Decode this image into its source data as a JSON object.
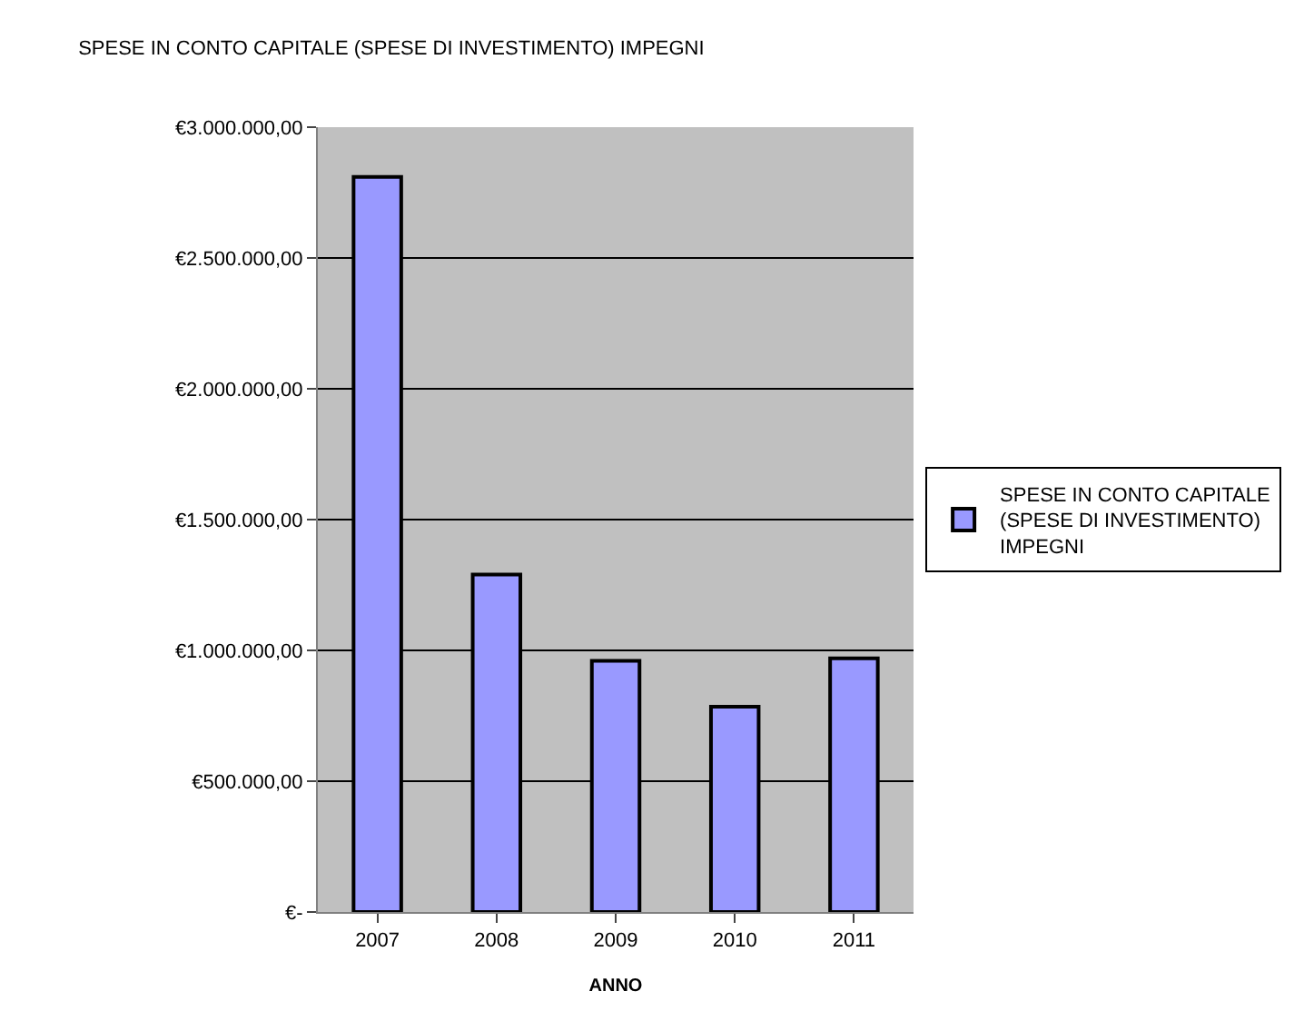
{
  "chart_data": {
    "type": "bar",
    "title": "SPESE IN CONTO CAPITALE (SPESE DI INVESTIMENTO) IMPEGNI",
    "xlabel": "ANNO",
    "categories": [
      "2007",
      "2008",
      "2009",
      "2010",
      "2011"
    ],
    "series": [
      {
        "name": "SPESE IN CONTO CAPITALE (SPESE DI INVESTIMENTO) IMPEGNI",
        "color": "#9999ff",
        "values": [
          2810000,
          1290000,
          960000,
          785000,
          970000
        ]
      }
    ],
    "ylim": [
      0,
      3000000
    ],
    "yticks": [
      {
        "value": 0,
        "label": "€-"
      },
      {
        "value": 500000,
        "label": "€500.000,00"
      },
      {
        "value": 1000000,
        "label": "€1.000.000,00"
      },
      {
        "value": 1500000,
        "label": "€1.500.000,00"
      },
      {
        "value": 2000000,
        "label": "€2.000.000,00"
      },
      {
        "value": 2500000,
        "label": "€2.500.000,00"
      },
      {
        "value": 3000000,
        "label": "€3.000.000,00"
      }
    ],
    "grid": "y",
    "legend": "right"
  }
}
